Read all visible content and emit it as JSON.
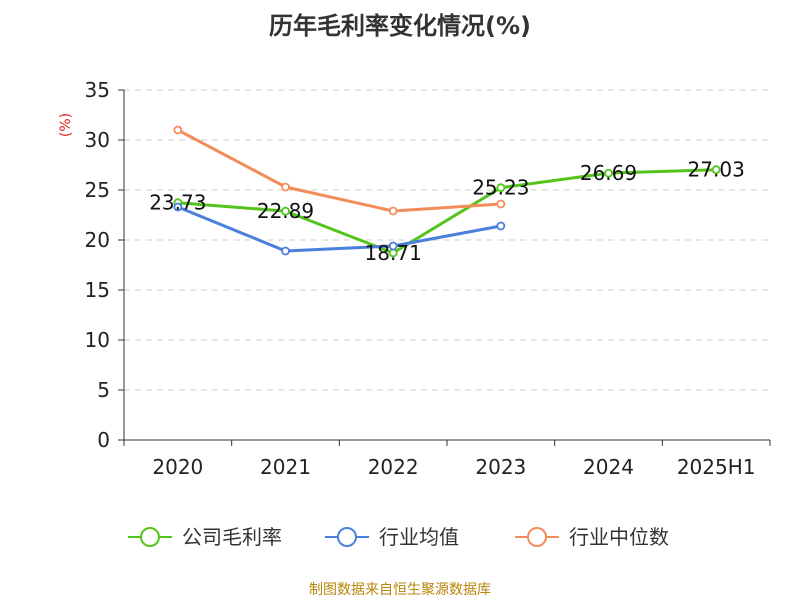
{
  "colors": {
    "company": "#52c41a",
    "industry_avg": "#4a7fdb",
    "industry_median": "#f28c5a",
    "ylabel": "#e02020",
    "source": "#b8860b"
  },
  "source_note": "制图数据来自恒生聚源数据库",
  "chart_data": {
    "type": "line",
    "title": "历年毛利率变化情况(%)",
    "ylabel": "(%)",
    "xlabel": "",
    "categories": [
      "2020",
      "2021",
      "2022",
      "2023",
      "2024",
      "2025H1"
    ],
    "ylim": [
      0,
      35
    ],
    "yticks": [
      0,
      5,
      10,
      15,
      20,
      25,
      30,
      35
    ],
    "grid": "horizontal dashed",
    "legend_position": "bottom",
    "series": [
      {
        "name": "公司毛利率",
        "color_key": "company",
        "values": [
          23.73,
          22.89,
          18.71,
          25.23,
          26.69,
          27.03
        ],
        "labels": [
          "23.73",
          "22.89",
          "18.71",
          "25.23",
          "26.69",
          "27.03"
        ]
      },
      {
        "name": "行业均值",
        "color_key": "industry_avg",
        "values": [
          23.3,
          18.9,
          19.4,
          21.4,
          null,
          null
        ]
      },
      {
        "name": "行业中位数",
        "color_key": "industry_median",
        "values": [
          31.0,
          25.3,
          22.9,
          23.6,
          null,
          null
        ]
      }
    ]
  }
}
